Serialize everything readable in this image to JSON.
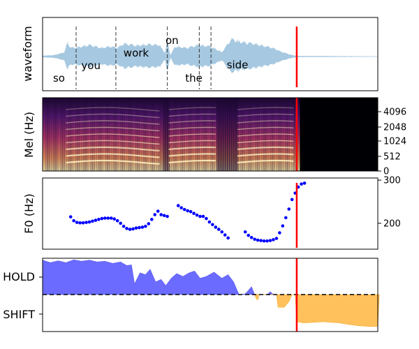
{
  "chart_data": [
    {
      "type": "line",
      "panel": "waveform",
      "ylabel": "waveform",
      "color": "#a6c8e0",
      "words": [
        {
          "text": "so",
          "t": 0.21
        },
        {
          "text": "you",
          "t": 0.62
        },
        {
          "text": "work",
          "t": 1.2
        },
        {
          "text": "on",
          "t": 1.66
        },
        {
          "text": "the",
          "t": 1.94
        },
        {
          "text": "side",
          "t": 2.5
        }
      ],
      "boundaries": [
        0.43,
        0.94,
        1.6,
        2.01,
        2.16
      ],
      "envelope": [
        [
          0.0,
          0.03
        ],
        [
          0.15,
          0.05
        ],
        [
          0.28,
          0.15
        ],
        [
          0.32,
          0.5
        ],
        [
          0.36,
          0.3
        ],
        [
          0.45,
          0.32
        ],
        [
          0.6,
          0.4
        ],
        [
          0.75,
          0.3
        ],
        [
          0.88,
          0.35
        ],
        [
          0.95,
          0.3
        ],
        [
          1.05,
          0.45
        ],
        [
          1.2,
          0.38
        ],
        [
          1.35,
          0.42
        ],
        [
          1.5,
          0.4
        ],
        [
          1.57,
          0.12
        ],
        [
          1.6,
          0.55
        ],
        [
          1.64,
          0.05
        ],
        [
          1.7,
          0.35
        ],
        [
          1.85,
          0.3
        ],
        [
          2.0,
          0.4
        ],
        [
          2.15,
          0.35
        ],
        [
          2.3,
          0.15
        ],
        [
          2.42,
          0.6
        ],
        [
          2.55,
          0.5
        ],
        [
          2.7,
          0.45
        ],
        [
          2.95,
          0.3
        ],
        [
          3.08,
          0.15
        ],
        [
          3.2,
          0.05
        ],
        [
          3.3,
          0.02
        ],
        [
          4.3,
          0.01
        ]
      ],
      "marker_t": 3.26
    },
    {
      "type": "heatmap",
      "panel": "mel-spectrogram",
      "ylabel": "Mel (Hz)",
      "yticks": [
        "0",
        "512",
        "1024",
        "2048",
        "4096"
      ],
      "marker_t": 3.26
    },
    {
      "type": "scatter",
      "panel": "f0",
      "ylabel": "F0 (Hz)",
      "yticks": [
        200,
        300
      ],
      "ylim": [
        140,
        305
      ],
      "color": "#0000ff",
      "marker_t": 3.26,
      "segments": [
        [
          [
            0.36,
            215
          ],
          [
            0.4,
            206
          ],
          [
            0.44,
            202
          ],
          [
            0.48,
            201
          ],
          [
            0.52,
            201
          ],
          [
            0.56,
            202
          ],
          [
            0.6,
            203
          ],
          [
            0.64,
            205
          ],
          [
            0.68,
            207
          ],
          [
            0.72,
            209
          ],
          [
            0.76,
            211
          ],
          [
            0.8,
            212
          ],
          [
            0.84,
            212
          ],
          [
            0.88,
            212
          ],
          [
            0.92,
            210
          ],
          [
            0.96,
            206
          ],
          [
            1.0,
            200
          ],
          [
            1.04,
            193
          ],
          [
            1.08,
            188
          ],
          [
            1.12,
            186
          ],
          [
            1.16,
            187
          ],
          [
            1.2,
            189
          ],
          [
            1.24,
            190
          ],
          [
            1.28,
            191
          ],
          [
            1.32,
            193
          ],
          [
            1.36,
            199
          ],
          [
            1.4,
            209
          ],
          [
            1.44,
            220
          ],
          [
            1.48,
            228
          ],
          [
            1.52,
            220
          ],
          [
            1.56,
            218
          ],
          [
            1.6,
            216
          ]
        ],
        [
          [
            1.74,
            241
          ],
          [
            1.78,
            236
          ],
          [
            1.82,
            232
          ],
          [
            1.86,
            229
          ],
          [
            1.9,
            227
          ],
          [
            1.94,
            223
          ],
          [
            1.98,
            219
          ],
          [
            2.02,
            216
          ],
          [
            2.06,
            216
          ],
          [
            2.1,
            211
          ],
          [
            2.14,
            203
          ],
          [
            2.18,
            197
          ],
          [
            2.22,
            191
          ],
          [
            2.26,
            186
          ],
          [
            2.3,
            180
          ],
          [
            2.34,
            173
          ],
          [
            2.38,
            166
          ]
        ],
        [
          [
            2.6,
            180
          ],
          [
            2.64,
            172
          ],
          [
            2.68,
            167
          ],
          [
            2.72,
            163
          ],
          [
            2.76,
            161
          ],
          [
            2.8,
            160
          ],
          [
            2.84,
            159
          ],
          [
            2.88,
            159
          ],
          [
            2.92,
            160
          ],
          [
            2.96,
            162
          ],
          [
            3.0,
            165
          ],
          [
            3.04,
            178
          ],
          [
            3.08,
            194
          ],
          [
            3.12,
            213
          ],
          [
            3.16,
            233
          ],
          [
            3.2,
            255
          ],
          [
            3.24,
            270
          ],
          [
            3.28,
            284
          ],
          [
            3.32,
            291
          ],
          [
            3.36,
            293
          ]
        ]
      ]
    },
    {
      "type": "area",
      "panel": "turn-taking",
      "yticks": [
        "HOLD",
        "SHIFT"
      ],
      "ylim": [
        -1.0,
        1.0
      ],
      "marker_t": 3.26,
      "hold_color": "#6b6bff",
      "shift_color": "#ffc15c",
      "hold": [
        [
          0.0,
          0.95
        ],
        [
          0.1,
          0.88
        ],
        [
          0.2,
          0.93
        ],
        [
          0.3,
          0.88
        ],
        [
          0.4,
          0.96
        ],
        [
          0.5,
          0.92
        ],
        [
          0.6,
          0.95
        ],
        [
          0.7,
          0.9
        ],
        [
          0.8,
          0.92
        ],
        [
          0.9,
          0.86
        ],
        [
          1.0,
          0.9
        ],
        [
          1.08,
          0.8
        ],
        [
          1.14,
          0.82
        ],
        [
          1.18,
          0.3
        ],
        [
          1.25,
          0.6
        ],
        [
          1.32,
          0.55
        ],
        [
          1.38,
          0.7
        ],
        [
          1.45,
          0.35
        ],
        [
          1.52,
          0.42
        ],
        [
          1.58,
          0.25
        ],
        [
          1.65,
          0.45
        ],
        [
          1.72,
          0.58
        ],
        [
          1.8,
          0.5
        ],
        [
          1.88,
          0.6
        ],
        [
          1.95,
          0.65
        ],
        [
          2.02,
          0.45
        ],
        [
          2.1,
          0.5
        ],
        [
          2.2,
          0.62
        ],
        [
          2.3,
          0.45
        ],
        [
          2.38,
          0.55
        ],
        [
          2.45,
          0.35
        ],
        [
          2.52,
          0.0
        ],
        [
          2.6,
          0.02
        ],
        [
          2.68,
          0.22
        ],
        [
          2.72,
          0.0
        ],
        [
          2.88,
          0.0
        ],
        [
          2.92,
          0.08
        ],
        [
          2.96,
          0.0
        ]
      ],
      "shift": [
        [
          2.72,
          0.0
        ],
        [
          2.74,
          -0.12
        ],
        [
          2.76,
          -0.15
        ],
        [
          2.78,
          0.0
        ],
        [
          3.0,
          0.0
        ],
        [
          3.02,
          -0.35
        ],
        [
          3.1,
          -0.35
        ],
        [
          3.16,
          -0.2
        ],
        [
          3.2,
          0.0
        ],
        [
          3.24,
          0.0
        ],
        [
          3.26,
          -0.75
        ],
        [
          3.35,
          -0.78
        ],
        [
          3.6,
          -0.75
        ],
        [
          3.8,
          -0.78
        ],
        [
          3.95,
          -0.83
        ],
        [
          4.05,
          -0.86
        ],
        [
          4.2,
          -0.88
        ],
        [
          4.3,
          -0.88
        ],
        [
          4.32,
          0.0
        ]
      ]
    }
  ]
}
